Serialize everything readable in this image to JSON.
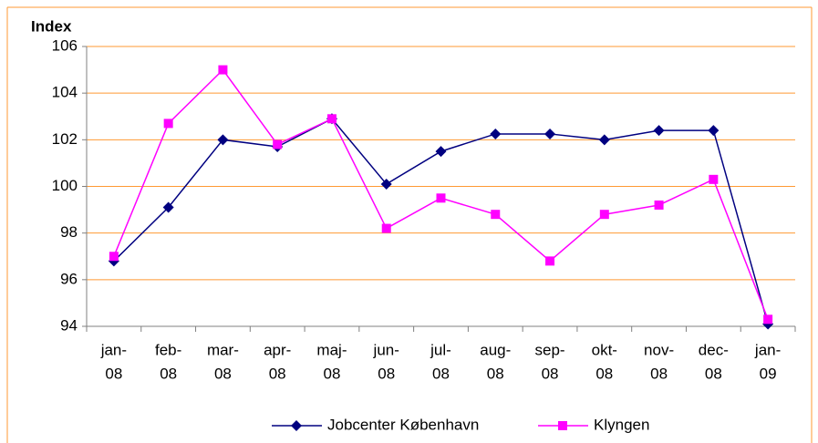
{
  "chart_data": {
    "type": "line",
    "y_label": "Index",
    "categories": [
      [
        "jan-",
        "08"
      ],
      [
        "feb-",
        "08"
      ],
      [
        "mar-",
        "08"
      ],
      [
        "apr-",
        "08"
      ],
      [
        "maj-",
        "08"
      ],
      [
        "jun-",
        "08"
      ],
      [
        "jul-",
        "08"
      ],
      [
        "aug-",
        "08"
      ],
      [
        "sep-",
        "08"
      ],
      [
        "okt-",
        "08"
      ],
      [
        "nov-",
        "08"
      ],
      [
        "dec-",
        "08"
      ],
      [
        "jan-",
        "09"
      ]
    ],
    "series": [
      {
        "name": "Jobcenter København",
        "color": "#000080",
        "marker": "diamond",
        "values": [
          96.8,
          99.1,
          102.0,
          101.7,
          102.9,
          100.1,
          101.5,
          102.25,
          102.25,
          102.0,
          102.4,
          102.4,
          94.1
        ]
      },
      {
        "name": "Klyngen",
        "color": "#ff00ff",
        "marker": "square",
        "values": [
          97.0,
          102.7,
          105.0,
          101.8,
          102.9,
          98.2,
          99.5,
          98.8,
          96.8,
          98.8,
          99.2,
          100.3,
          94.3
        ]
      }
    ],
    "ylim": [
      94,
      106
    ],
    "yticks": [
      94,
      96,
      98,
      100,
      102,
      104,
      106
    ],
    "grid": true,
    "grid_color": "#ff9933",
    "legend": "bottom"
  }
}
